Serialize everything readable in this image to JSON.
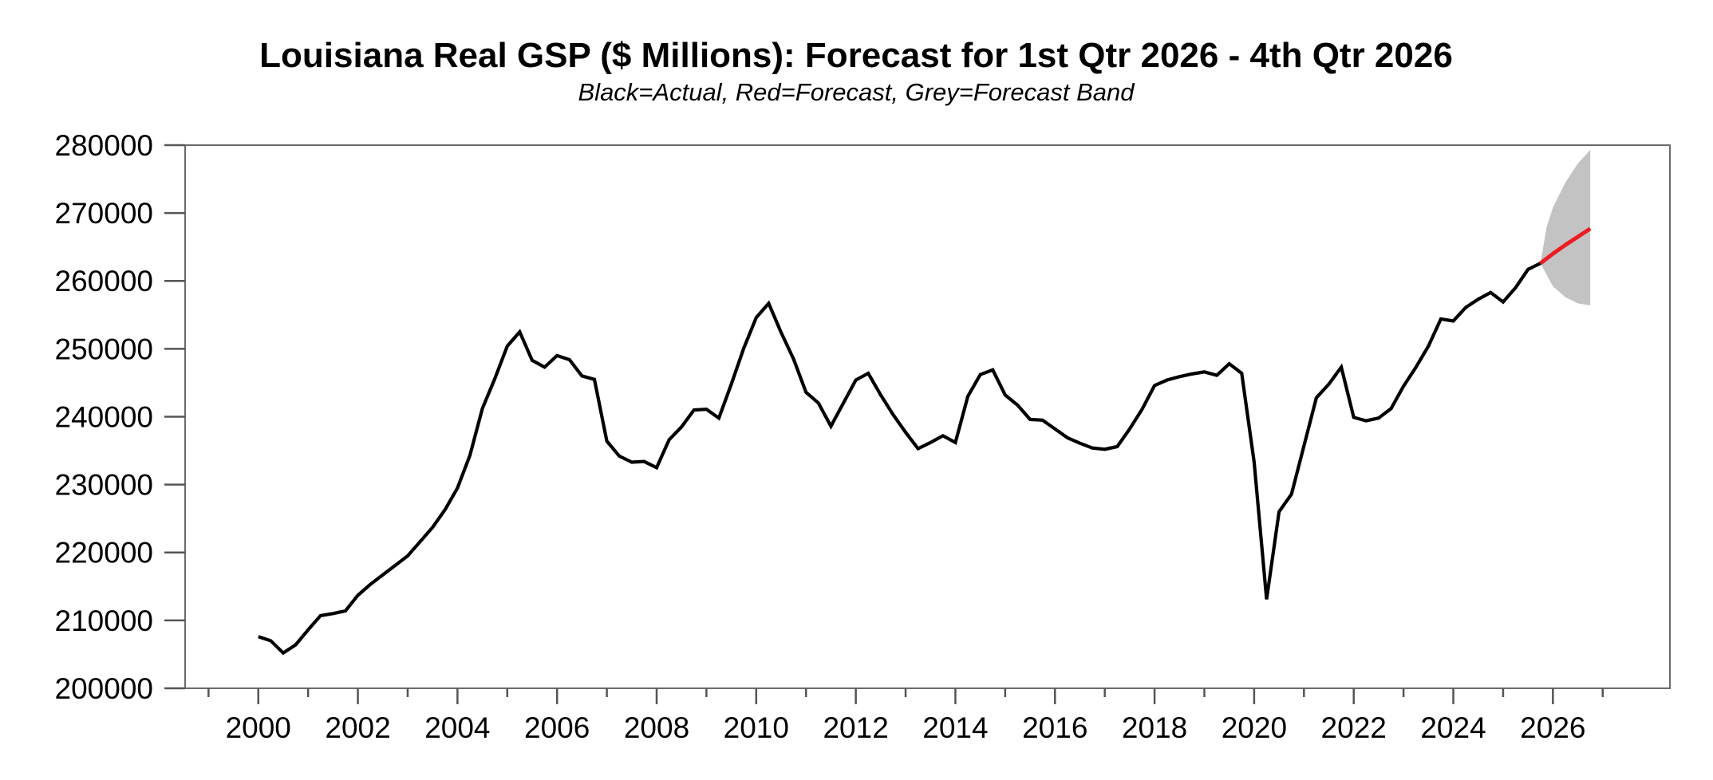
{
  "chart_data": {
    "type": "line",
    "title": "Louisiana Real GSP ($ Millions): Forecast for 1st Qtr 2026 - 4th Qtr 2026",
    "subtitle": "Black=Actual, Red=Forecast, Grey=Forecast Band",
    "grid": false,
    "legend_position": "none",
    "x_axis": {
      "range": [
        1998.53,
        2028.35
      ],
      "labeled_ticks": [
        2000,
        2002,
        2004,
        2006,
        2008,
        2010,
        2012,
        2014,
        2016,
        2018,
        2020,
        2022,
        2024,
        2026
      ],
      "minor_ticks": [
        1999,
        2001,
        2003,
        2005,
        2007,
        2009,
        2011,
        2013,
        2015,
        2017,
        2019,
        2021,
        2023,
        2025,
        2027
      ]
    },
    "y_axis": {
      "range": [
        200000,
        280000
      ],
      "ticks": [
        200000,
        210000,
        220000,
        230000,
        240000,
        250000,
        260000,
        270000,
        280000
      ]
    },
    "series": [
      {
        "name": "Actual",
        "color": "#000000",
        "frequency": "quarterly",
        "start_year": 2000,
        "start_quarter": 1,
        "end_label": "2025Q4",
        "values": [
          207600,
          207000,
          205200,
          206400,
          208600,
          210700,
          211000,
          211400,
          213700,
          215300,
          216700,
          218100,
          219500,
          221600,
          223700,
          226300,
          229500,
          234300,
          241200,
          245600,
          250400,
          252500,
          248300,
          247300,
          249000,
          248400,
          246000,
          245500,
          236400,
          234200,
          233300,
          233400,
          232500,
          236600,
          238500,
          241000,
          241100,
          239800,
          244800,
          250100,
          254600,
          256700,
          252400,
          248500,
          243600,
          242000,
          238600,
          242000,
          245400,
          246400,
          243200,
          240300,
          237700,
          235300,
          236200,
          237200,
          236200,
          243000,
          246200,
          246900,
          243200,
          241700,
          239600,
          239500,
          238200,
          236900,
          236100,
          235400,
          235200,
          235600,
          238200,
          241100,
          244600,
          245400,
          245900,
          246300,
          246600,
          246100,
          247800,
          246400,
          233300,
          213100,
          226000,
          228600,
          235700,
          242800,
          244800,
          247300,
          239900,
          239400,
          239800,
          241200,
          244500,
          247300,
          250400,
          254400,
          254100,
          256100,
          257300,
          258300,
          256900,
          259000,
          261700,
          262600
        ]
      },
      {
        "name": "Forecast",
        "color": "#ed1c24",
        "frequency": "quarterly",
        "start_year": 2026,
        "start_quarter": 1,
        "end_label": "2026Q4",
        "values": [
          264000,
          265300,
          266500,
          267700
        ]
      },
      {
        "name": "Forecast Band",
        "color": "#c3c3c3",
        "t": [
          2025.75,
          2025.875,
          2026.0,
          2026.25,
          2026.5,
          2026.75
        ],
        "upper": [
          262600,
          268000,
          270800,
          274500,
          277300,
          279300
        ],
        "lower": [
          262600,
          260900,
          259200,
          257600,
          256700,
          256400
        ]
      }
    ]
  }
}
